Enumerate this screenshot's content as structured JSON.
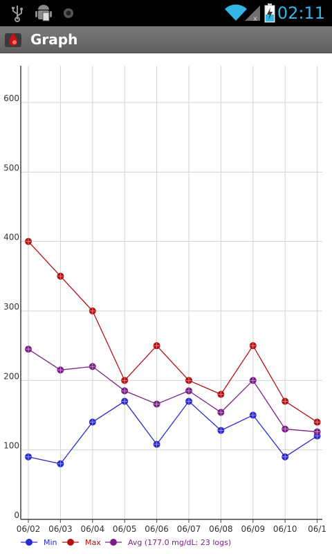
{
  "status_bar": {
    "time": "02:11",
    "left_icons": [
      "usb-icon",
      "android-debug-icon",
      "notification-dot-icon"
    ],
    "right_icons": [
      "wifi-icon",
      "signal-icon",
      "battery-charging-icon"
    ]
  },
  "action_bar": {
    "title": "Graph",
    "app_icon": "blood-drop-app-icon"
  },
  "colors": {
    "min": "#2a2ad0",
    "max": "#b51010",
    "avg": "#7a1f88",
    "grid": "#d3d3d3",
    "axis": "#444444",
    "label": "#333333"
  },
  "chart_data": {
    "type": "line",
    "x": [
      "06/02",
      "06/03",
      "06/04",
      "06/05",
      "06/06",
      "06/07",
      "06/08",
      "06/09",
      "06/10",
      "06/1"
    ],
    "ylim": [
      0,
      650
    ],
    "yticks": [
      "0",
      "100",
      "200",
      "300",
      "400",
      "500",
      "600"
    ],
    "ytick_values": [
      0,
      100,
      200,
      300,
      400,
      500,
      600
    ],
    "grid": true,
    "legend_position": "bottom-left",
    "series": [
      {
        "name": "Min",
        "color": "#2a2ad0",
        "values": [
          90,
          80,
          140,
          170,
          108,
          170,
          128,
          150,
          90,
          120
        ]
      },
      {
        "name": "Max",
        "color": "#b51010",
        "values": [
          400,
          350,
          300,
          200,
          250,
          200,
          180,
          250,
          170,
          140
        ]
      },
      {
        "name": "Avg (177.0 mg/dL: 23 logs)",
        "color": "#7a1f88",
        "values": [
          245,
          215,
          220,
          185,
          166,
          185,
          154,
          200,
          130,
          126
        ]
      }
    ]
  }
}
